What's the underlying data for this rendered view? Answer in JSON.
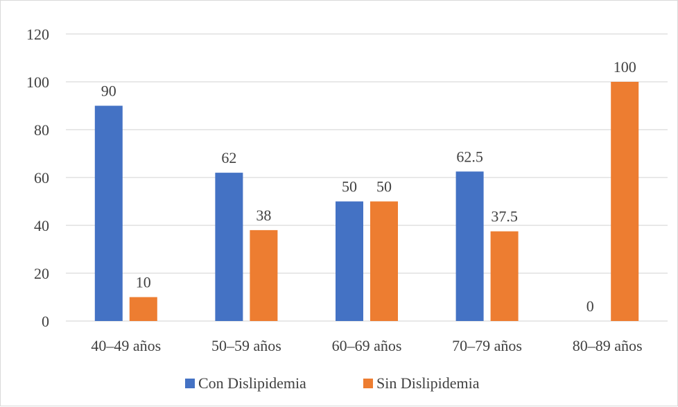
{
  "chart_data": {
    "type": "bar",
    "title": "",
    "xlabel": "",
    "ylabel": "",
    "categories": [
      "40–49 años",
      "50–59 años",
      "60–69 años",
      "70–79 años",
      "80–89 años"
    ],
    "series": [
      {
        "name": "Con Dislipidemia",
        "color": "#4472c4",
        "values": [
          90,
          62,
          50,
          62.5,
          0
        ]
      },
      {
        "name": "Sin Dislipidemia",
        "color": "#ed7d31",
        "values": [
          10,
          38,
          50,
          37.5,
          100
        ]
      }
    ],
    "data_labels": [
      [
        "90",
        "62",
        "50",
        "62.5",
        "0"
      ],
      [
        "10",
        "38",
        "50",
        "37.5",
        "100"
      ]
    ],
    "ylim": [
      0,
      120
    ],
    "yticks": [
      0,
      20,
      40,
      60,
      80,
      100,
      120
    ],
    "grid": true,
    "gridColor": "#d9d9d9",
    "legend": "bottom"
  }
}
